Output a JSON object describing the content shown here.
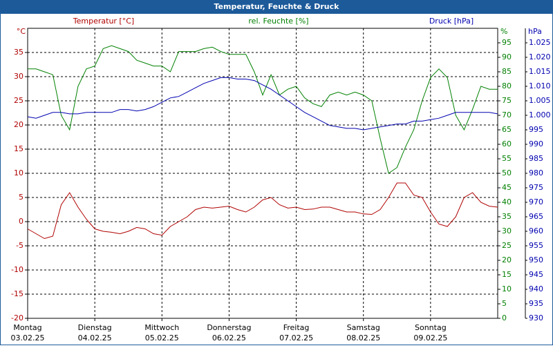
{
  "chart_data": {
    "type": "line",
    "title": "Temperatur, Feuchte & Druck",
    "ylabel": "Temperatur [°C]",
    "y2label": "rel. Feuchte [%]",
    "y3label": "Druck [hPa]",
    "yunit": "°C",
    "y2unit": "%",
    "y3unit": "hPa",
    "xlim": [
      0,
      7
    ],
    "xticks": [
      0,
      1,
      2,
      3,
      4,
      5,
      6
    ],
    "xtick_days": [
      "Montag",
      "Dienstag",
      "Mittwoch",
      "Donnerstag",
      "Freitag",
      "Samstag",
      "Sonntag"
    ],
    "xtick_dates": [
      "03.02.25",
      "04.02.25",
      "05.02.25",
      "06.02.25",
      "07.02.25",
      "08.02.25",
      "09.02.25"
    ],
    "ylim": [
      -20,
      40
    ],
    "yticks": [
      -20,
      -15,
      -10,
      -5,
      0,
      5,
      10,
      15,
      20,
      25,
      30,
      35
    ],
    "y2lim": [
      0,
      100
    ],
    "y2ticks": [
      0,
      5,
      10,
      15,
      20,
      25,
      30,
      35,
      40,
      45,
      50,
      55,
      60,
      65,
      70,
      75,
      80,
      85,
      90,
      95
    ],
    "y3lim": [
      930,
      1030
    ],
    "y3ticks": [
      930,
      935,
      940,
      945,
      950,
      955,
      960,
      965,
      970,
      975,
      980,
      985,
      990,
      995,
      {
        "value": 1000,
        "label": "1.000"
      },
      {
        "value": 1005,
        "label": "1.005"
      },
      {
        "value": 1010,
        "label": "1.010"
      },
      {
        "value": 1015,
        "label": "1.015"
      },
      {
        "value": 1020,
        "label": "1.020"
      },
      {
        "value": 1025,
        "label": "1.025"
      }
    ],
    "grid": true,
    "x": [
      0,
      0.125,
      0.25,
      0.375,
      0.5,
      0.625,
      0.75,
      0.875,
      1,
      1.125,
      1.25,
      1.375,
      1.5,
      1.625,
      1.75,
      1.875,
      2,
      2.125,
      2.25,
      2.375,
      2.5,
      2.625,
      2.75,
      2.875,
      3,
      3.125,
      3.25,
      3.375,
      3.5,
      3.625,
      3.75,
      3.875,
      4,
      4.125,
      4.25,
      4.375,
      4.5,
      4.625,
      4.75,
      4.875,
      5,
      5.125,
      5.25,
      5.375,
      5.5,
      5.625,
      5.75,
      5.875,
      6,
      6.125,
      6.25,
      6.375,
      6.5,
      6.625,
      6.75,
      6.875,
      7
    ],
    "series": [
      {
        "name": "Temperatur",
        "color": "#b00000",
        "axis": "y",
        "values": [
          -1.5,
          -2.5,
          -3.5,
          -3,
          3.5,
          6,
          3,
          0.5,
          -1.5,
          -2,
          -2.2,
          -2.5,
          -2,
          -1.2,
          -1.5,
          -2.5,
          -2.8,
          -1,
          0,
          1,
          2.5,
          3,
          2.8,
          3,
          3.2,
          2.5,
          2,
          3,
          4.5,
          5,
          3.5,
          2.8,
          3,
          2.5,
          2.6,
          3,
          3,
          2.5,
          2,
          2,
          1.6,
          1.5,
          2.5,
          5,
          8,
          8,
          5.5,
          5,
          2,
          -0.5,
          -1,
          1,
          5,
          6,
          4,
          3.2,
          3
        ]
      },
      {
        "name": "rel. Feuchte",
        "color": "#008000",
        "axis": "y2",
        "values": [
          86,
          86,
          85,
          84,
          70,
          65,
          80,
          86,
          87,
          93,
          94,
          93,
          92,
          89,
          88,
          87,
          87,
          85,
          92,
          92,
          92,
          93,
          93.5,
          92,
          91,
          91,
          91,
          85,
          77,
          84,
          77,
          79,
          80,
          76,
          74,
          73,
          77,
          78,
          77,
          78,
          77,
          75,
          62,
          50,
          52,
          59,
          65,
          75,
          83,
          86,
          83,
          70,
          65,
          72,
          80,
          79,
          79
        ]
      },
      {
        "name": "Druck",
        "color": "#0000b0",
        "axis": "y3",
        "values": [
          999.5,
          999,
          1000,
          1001,
          1001,
          1000.5,
          1000.5,
          1001,
          1001,
          1001,
          1001,
          1002,
          1002,
          1001.5,
          1002,
          1003,
          1004.5,
          1006,
          1006.5,
          1008,
          1009.5,
          1011,
          1012,
          1013,
          1013,
          1012.5,
          1012.5,
          1012,
          1010.5,
          1009,
          1007,
          1005,
          1003,
          1001,
          999.5,
          998,
          996.5,
          996,
          995.5,
          995.5,
          995,
          995.5,
          996,
          996.5,
          997,
          997,
          998,
          998,
          998.5,
          999,
          1000,
          1001,
          1001,
          1001,
          1001,
          1001,
          1000.5
        ]
      }
    ]
  }
}
